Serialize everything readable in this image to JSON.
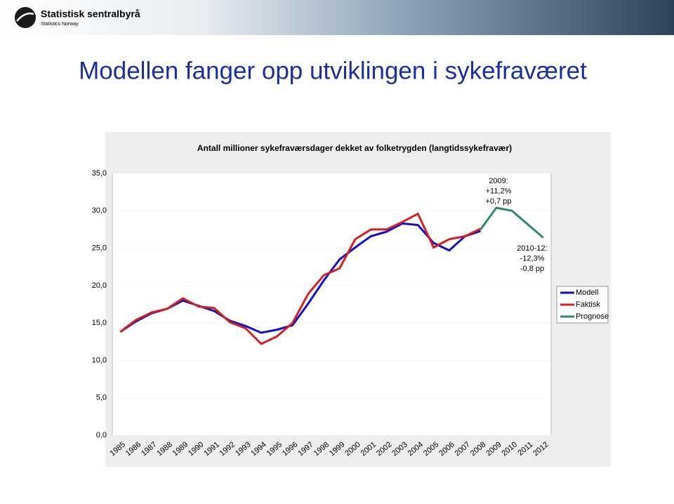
{
  "header": {
    "org": "Statistisk sentralbyrå",
    "org_en": "Statistics Norway"
  },
  "slide_title": "Modellen fanger opp utviklingen i sykefraværet",
  "chart_data": {
    "type": "line",
    "title": "Antall millioner sykefraværsdager dekket av folketrygden (langtidssykefravær)",
    "categories": [
      "1985",
      "1986",
      "1987",
      "1988",
      "1989",
      "1990",
      "1991",
      "1992",
      "1993",
      "1994",
      "1995",
      "1996",
      "1997",
      "1998",
      "1999",
      "2000",
      "2001",
      "2002",
      "2003",
      "2004",
      "2005",
      "2006",
      "2007",
      "2008",
      "2009",
      "2010",
      "2011",
      "2012"
    ],
    "series": [
      {
        "name": "Modell",
        "color": "#1010c8",
        "values": [
          13.8,
          15.2,
          16.3,
          16.9,
          18.0,
          17.3,
          16.6,
          15.3,
          14.6,
          13.7,
          14.1,
          14.7,
          17.6,
          20.7,
          23.5,
          25.1,
          26.6,
          27.2,
          28.3,
          28.1,
          25.7,
          24.7,
          26.6,
          27.3,
          null,
          null,
          null,
          null
        ]
      },
      {
        "name": "Faktisk",
        "color": "#d42020",
        "values": [
          13.8,
          15.4,
          16.4,
          16.9,
          18.3,
          17.2,
          17.0,
          15.1,
          14.3,
          12.2,
          13.2,
          15.0,
          18.9,
          21.4,
          22.3,
          26.2,
          27.5,
          27.5,
          28.5,
          29.6,
          25.1,
          26.2,
          26.6,
          27.6,
          null,
          null,
          null,
          null
        ]
      },
      {
        "name": "Prognose",
        "color": "#2e8b6a",
        "values": [
          null,
          null,
          null,
          null,
          null,
          null,
          null,
          null,
          null,
          null,
          null,
          null,
          null,
          null,
          null,
          null,
          null,
          null,
          null,
          null,
          null,
          null,
          null,
          27.5,
          30.4,
          30.0,
          28.2,
          26.4
        ]
      }
    ],
    "ylim": [
      0,
      35
    ],
    "yticks": [
      {
        "value": 0,
        "label": "0,0"
      },
      {
        "value": 5,
        "label": "5,0"
      },
      {
        "value": 10,
        "label": "10,0"
      },
      {
        "value": 15,
        "label": "15,0"
      },
      {
        "value": 20,
        "label": "20,0"
      },
      {
        "value": 25,
        "label": "25,0"
      },
      {
        "value": 30,
        "label": "30,0"
      },
      {
        "value": 35,
        "label": "35,0"
      }
    ],
    "grid": true,
    "legend": "right",
    "annotations": [
      [
        "2009:",
        "+11,2%",
        "+0,7 pp"
      ],
      [
        "2010-12:",
        "-12,3%",
        "-0,8 pp"
      ]
    ]
  }
}
